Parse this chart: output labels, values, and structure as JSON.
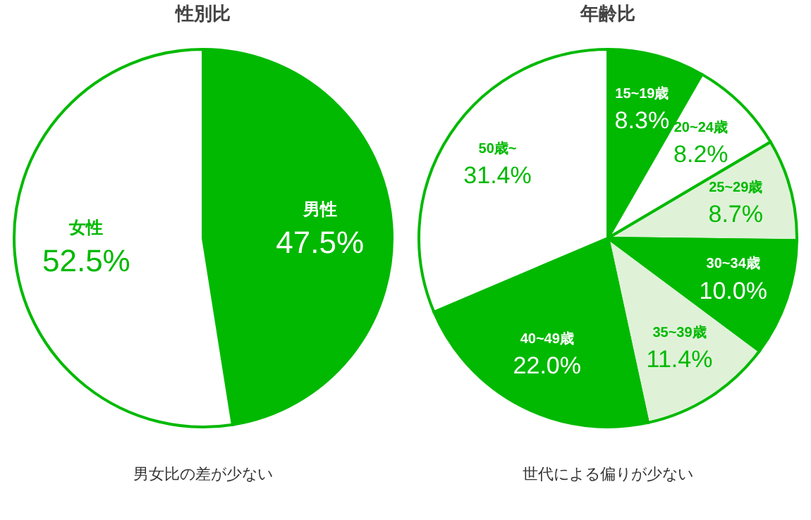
{
  "chart_data": [
    {
      "type": "pie",
      "title": "性別比",
      "categories": [
        "男性",
        "女性"
      ],
      "values": [
        47.5,
        52.5
      ],
      "colors": [
        "#00b900",
        "#ffffff"
      ],
      "value_labels": [
        "47.5%",
        "52.5%"
      ],
      "annotations": [
        "男女比の差が少ない"
      ]
    },
    {
      "type": "pie",
      "title": "年齢比",
      "categories": [
        "15~19歳",
        "20~24歳",
        "25~29歳",
        "30~34歳",
        "35~39歳",
        "40~49歳",
        "50歳~"
      ],
      "values": [
        8.3,
        8.2,
        8.7,
        10.0,
        11.4,
        22.0,
        31.4
      ],
      "colors": [
        "#00b900",
        "#ffffff",
        "#dff2d8",
        "#00b900",
        "#dff2d8",
        "#00b900",
        "#ffffff"
      ],
      "value_labels": [
        "8.3%",
        "8.2%",
        "8.7%",
        "10.0%",
        "11.4%",
        "22.0%",
        "31.4%"
      ],
      "annotations": [
        "世代による偏りが少ない"
      ]
    }
  ]
}
